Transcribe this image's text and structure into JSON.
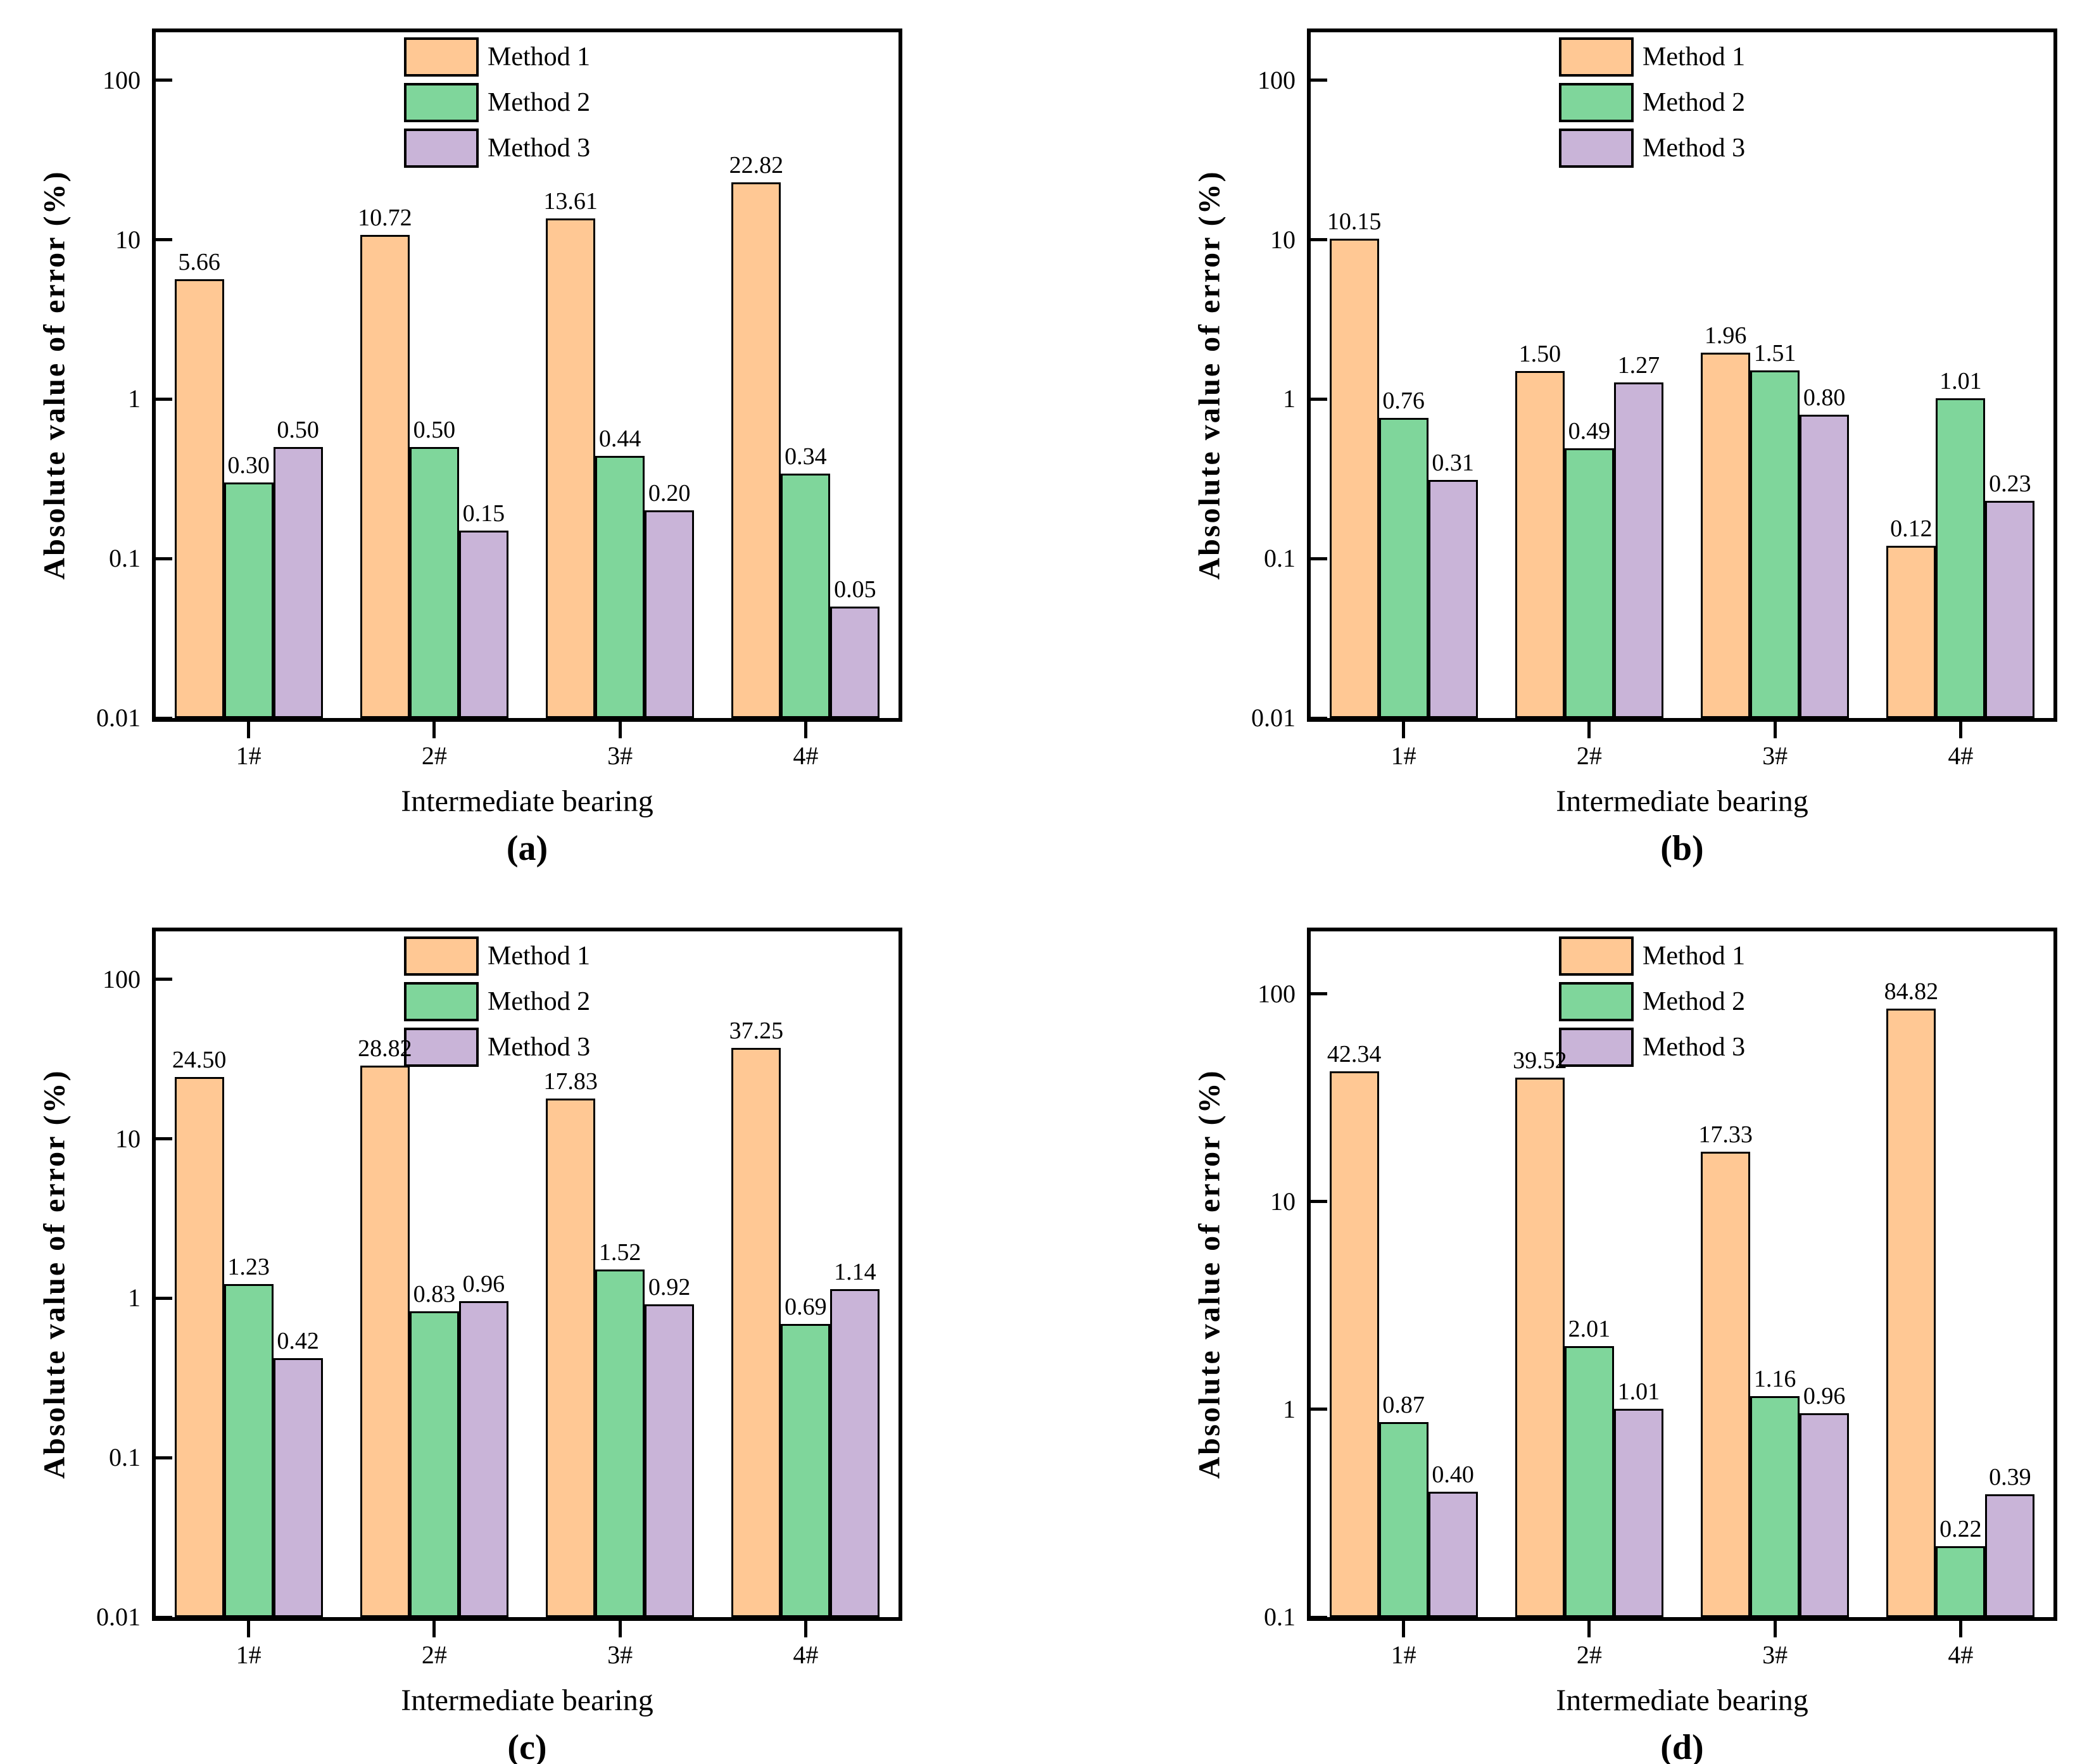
{
  "chart_data": [
    {
      "id": "a",
      "type": "bar",
      "caption": "(a)",
      "xlabel": "Intermediate bearing",
      "ylabel": "Absolute value of error (%)",
      "yscale": "log",
      "ylim": [
        0.01,
        200
      ],
      "yticks": [
        "100",
        "10",
        "1",
        "0.1",
        "0.01"
      ],
      "categories": [
        "1#",
        "2#",
        "3#",
        "4#"
      ],
      "grid": false,
      "legend_position": "top-center-inside",
      "series": [
        {
          "name": "Method 1",
          "color": "#FFC894",
          "values": [
            "5.66",
            "10.72",
            "13.61",
            "22.82"
          ]
        },
        {
          "name": "Method 2",
          "color": "#7FD69B",
          "values": [
            "0.30",
            "0.50",
            "0.44",
            "0.34"
          ]
        },
        {
          "name": "Method 3",
          "color": "#C9B4D8",
          "values": [
            "0.50",
            "0.15",
            "0.20",
            "0.05"
          ]
        }
      ]
    },
    {
      "id": "b",
      "type": "bar",
      "caption": "(b)",
      "xlabel": "Intermediate bearing",
      "ylabel": "Absolute value of error (%)",
      "yscale": "log",
      "ylim": [
        0.01,
        200
      ],
      "yticks": [
        "100",
        "10",
        "1",
        "0.1",
        "0.01"
      ],
      "categories": [
        "1#",
        "2#",
        "3#",
        "4#"
      ],
      "grid": false,
      "legend_position": "top-center-inside",
      "series": [
        {
          "name": "Method 1",
          "color": "#FFC894",
          "values": [
            "10.15",
            "1.50",
            "1.96",
            "0.12"
          ]
        },
        {
          "name": "Method 2",
          "color": "#7FD69B",
          "values": [
            "0.76",
            "0.49",
            "1.51",
            "1.01"
          ]
        },
        {
          "name": "Method 3",
          "color": "#C9B4D8",
          "values": [
            "0.31",
            "1.27",
            "0.80",
            "0.23"
          ]
        }
      ]
    },
    {
      "id": "c",
      "type": "bar",
      "caption": "(c)",
      "xlabel": "Intermediate bearing",
      "ylabel": "Absolute value of error (%)",
      "yscale": "log",
      "ylim": [
        0.01,
        200
      ],
      "yticks": [
        "100",
        "10",
        "1",
        "0.1",
        "0.01"
      ],
      "categories": [
        "1#",
        "2#",
        "3#",
        "4#"
      ],
      "grid": false,
      "legend_position": "top-center-inside",
      "series": [
        {
          "name": "Method 1",
          "color": "#FFC894",
          "values": [
            "24.50",
            "28.82",
            "17.83",
            "37.25"
          ]
        },
        {
          "name": "Method 2",
          "color": "#7FD69B",
          "values": [
            "1.23",
            "0.83",
            "1.52",
            "0.69"
          ]
        },
        {
          "name": "Method 3",
          "color": "#C9B4D8",
          "values": [
            "0.42",
            "0.96",
            "0.92",
            "1.14"
          ]
        }
      ]
    },
    {
      "id": "d",
      "type": "bar",
      "caption": "(d)",
      "xlabel": "Intermediate bearing",
      "ylabel": "Absolute value of error (%)",
      "yscale": "log",
      "ylim": [
        0.1,
        200
      ],
      "yticks": [
        "100",
        "10",
        "1",
        "0.1"
      ],
      "categories": [
        "1#",
        "2#",
        "3#",
        "4#"
      ],
      "grid": false,
      "legend_position": "top-center-inside",
      "series": [
        {
          "name": "Method 1",
          "color": "#FFC894",
          "values": [
            "42.34",
            "39.52",
            "17.33",
            "84.82"
          ]
        },
        {
          "name": "Method 2",
          "color": "#7FD69B",
          "values": [
            "0.87",
            "2.01",
            "1.16",
            "0.22"
          ]
        },
        {
          "name": "Method 3",
          "color": "#C9B4D8",
          "values": [
            "0.40",
            "1.01",
            "0.96",
            "0.39"
          ]
        }
      ]
    }
  ]
}
